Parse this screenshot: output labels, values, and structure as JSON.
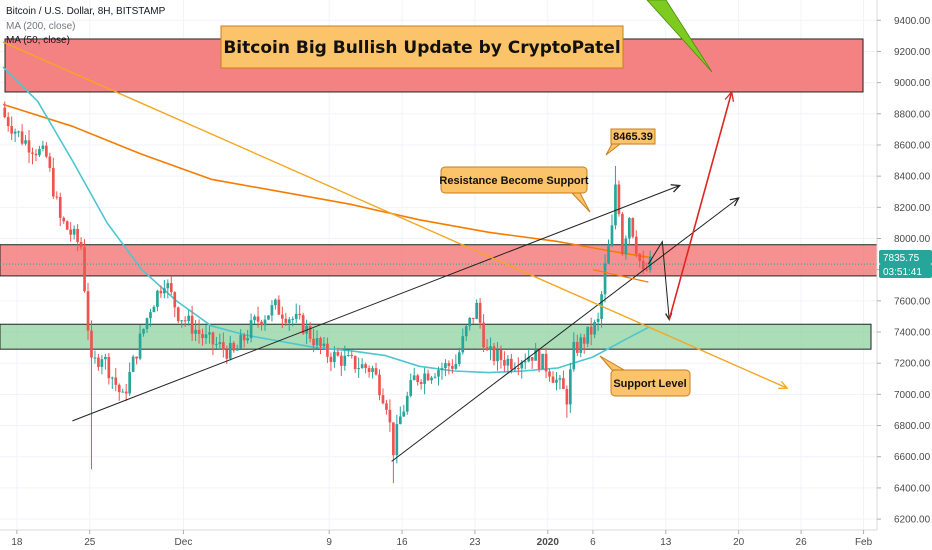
{
  "legend": {
    "symbol": "Bitcoin / U.S. Dollar, 8H, BITSTAMP",
    "ma200": "MA (200, close)",
    "ma50": "MA (50, close)"
  },
  "banner": {
    "title": "Bitcoin Big Bullish Update by CryptoPatel"
  },
  "annotations": {
    "high_tag": "8465.39",
    "resistance_callout": "Resistance Become Support",
    "support_callout": "Support Level"
  },
  "price_tag": {
    "price": "7835.75",
    "countdown": "03:51:41"
  },
  "colors": {
    "candle_up": "#26a69a",
    "candle_down": "#ef5350",
    "ma200": "#f57c00",
    "ma50": "#4dc6d0",
    "resistance_zone": "#f36c6c",
    "support_zone": "#8fd19e",
    "projection": "#e0241f",
    "price_tag": "#26a69a"
  },
  "chart_data": {
    "type": "candlestick",
    "timeframe": "8H",
    "y_ticks": [
      6200,
      6400,
      6600,
      6800,
      7000,
      7200,
      7400,
      7600,
      7800,
      8000,
      8200,
      8400,
      8600,
      8800,
      9000,
      9200,
      9400
    ],
    "ylim": [
      6130,
      9530
    ],
    "x_ticks": [
      {
        "label": "18",
        "index": 4
      },
      {
        "label": "25",
        "index": 25
      },
      {
        "label": "Dec",
        "index": 52
      },
      {
        "label": "9",
        "index": 94
      },
      {
        "label": "16",
        "index": 115
      },
      {
        "label": "23",
        "index": 136
      },
      {
        "label": "2020",
        "index": 157
      },
      {
        "label": "6",
        "index": 170
      },
      {
        "label": "13",
        "index": 191
      },
      {
        "label": "20",
        "index": 212
      },
      {
        "label": "26",
        "index": 230
      },
      {
        "label": "Feb",
        "index": 248
      }
    ],
    "candle_count": 226,
    "anchors": [
      {
        "i": 0,
        "p": 8780
      },
      {
        "i": 5,
        "p": 8640
      },
      {
        "i": 12,
        "p": 8520
      },
      {
        "i": 16,
        "p": 8120
      },
      {
        "i": 22,
        "p": 7950
      },
      {
        "i": 25,
        "p": 7180
      },
      {
        "i": 28,
        "p": 7260
      },
      {
        "i": 34,
        "p": 6970
      },
      {
        "i": 38,
        "p": 7280
      },
      {
        "i": 42,
        "p": 7560
      },
      {
        "i": 46,
        "p": 7740
      },
      {
        "i": 50,
        "p": 7520
      },
      {
        "i": 58,
        "p": 7350
      },
      {
        "i": 66,
        "p": 7260
      },
      {
        "i": 72,
        "p": 7460
      },
      {
        "i": 78,
        "p": 7560
      },
      {
        "i": 86,
        "p": 7440
      },
      {
        "i": 92,
        "p": 7270
      },
      {
        "i": 100,
        "p": 7200
      },
      {
        "i": 106,
        "p": 7160
      },
      {
        "i": 110,
        "p": 6950
      },
      {
        "i": 112,
        "p": 6650
      },
      {
        "i": 114,
        "p": 6850
      },
      {
        "i": 118,
        "p": 7100
      },
      {
        "i": 124,
        "p": 7160
      },
      {
        "i": 130,
        "p": 7200
      },
      {
        "i": 133,
        "p": 7410
      },
      {
        "i": 136,
        "p": 7560
      },
      {
        "i": 139,
        "p": 7260
      },
      {
        "i": 146,
        "p": 7210
      },
      {
        "i": 152,
        "p": 7260
      },
      {
        "i": 157,
        "p": 7160
      },
      {
        "i": 160,
        "p": 7050
      },
      {
        "i": 162,
        "p": 6980
      },
      {
        "i": 164,
        "p": 7280
      },
      {
        "i": 168,
        "p": 7380
      },
      {
        "i": 171,
        "p": 7460
      },
      {
        "i": 173,
        "p": 7810
      },
      {
        "i": 175,
        "p": 8050
      },
      {
        "i": 176,
        "p": 8350
      },
      {
        "i": 177,
        "p": 8200
      },
      {
        "i": 178,
        "p": 7930
      },
      {
        "i": 180,
        "p": 8150
      },
      {
        "i": 182,
        "p": 7950
      },
      {
        "i": 184,
        "p": 7760
      },
      {
        "i": 186,
        "p": 7836
      }
    ],
    "last_candle_index": 186,
    "last_price": 7835.75,
    "annotated_high": 8465.39,
    "ma200": [
      {
        "i": 0,
        "p": 8860
      },
      {
        "i": 20,
        "p": 8720
      },
      {
        "i": 40,
        "p": 8540
      },
      {
        "i": 60,
        "p": 8380
      },
      {
        "i": 80,
        "p": 8300
      },
      {
        "i": 100,
        "p": 8220
      },
      {
        "i": 120,
        "p": 8120
      },
      {
        "i": 140,
        "p": 8040
      },
      {
        "i": 160,
        "p": 7980
      },
      {
        "i": 175,
        "p": 7920
      },
      {
        "i": 186,
        "p": 7880
      }
    ],
    "ma50": [
      {
        "i": 0,
        "p": 9100
      },
      {
        "i": 10,
        "p": 8880
      },
      {
        "i": 20,
        "p": 8500
      },
      {
        "i": 30,
        "p": 8100
      },
      {
        "i": 40,
        "p": 7800
      },
      {
        "i": 50,
        "p": 7600
      },
      {
        "i": 60,
        "p": 7440
      },
      {
        "i": 70,
        "p": 7380
      },
      {
        "i": 80,
        "p": 7340
      },
      {
        "i": 90,
        "p": 7300
      },
      {
        "i": 100,
        "p": 7280
      },
      {
        "i": 110,
        "p": 7250
      },
      {
        "i": 120,
        "p": 7180
      },
      {
        "i": 130,
        "p": 7150
      },
      {
        "i": 140,
        "p": 7140
      },
      {
        "i": 150,
        "p": 7150
      },
      {
        "i": 160,
        "p": 7170
      },
      {
        "i": 170,
        "p": 7240
      },
      {
        "i": 180,
        "p": 7360
      },
      {
        "i": 186,
        "p": 7430
      }
    ],
    "zones": [
      {
        "name": "upper-resistance",
        "from": 8940,
        "to": 9280
      },
      {
        "name": "resistance-become-support",
        "from": 7760,
        "to": 7960
      },
      {
        "name": "support-level",
        "from": 7290,
        "to": 7450
      }
    ],
    "trendlines": [
      {
        "name": "upper-channel",
        "from": {
          "i": 20,
          "p": 6830
        },
        "to": {
          "i": 195,
          "p": 8340
        }
      },
      {
        "name": "lower-channel",
        "from": {
          "i": 112,
          "p": 6570
        },
        "to": {
          "i": 212,
          "p": 8260
        }
      },
      {
        "name": "descending-trendline",
        "from": {
          "i": 0,
          "p": 9260
        },
        "to": {
          "i": 226,
          "p": 7040
        }
      },
      {
        "name": "ma-trend-extension",
        "from": {
          "i": 170,
          "p": 7800
        },
        "to": {
          "i": 186,
          "p": 7720
        }
      }
    ],
    "projection_path": [
      {
        "i": 186,
        "p": 7836
      },
      {
        "i": 190,
        "p": 7980
      },
      {
        "i": 192,
        "p": 7480
      },
      {
        "i": 210,
        "p": 8940
      }
    ]
  }
}
